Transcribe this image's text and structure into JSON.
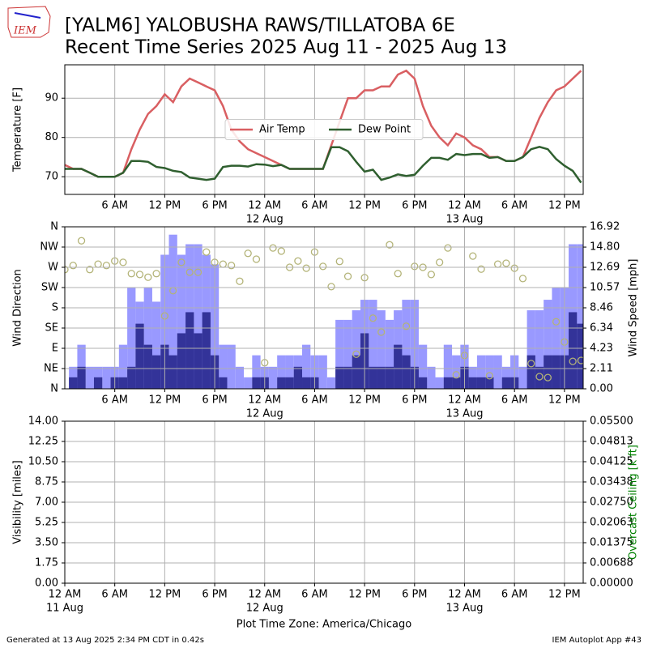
{
  "title": "[YALM6] YALOBUSHA RAWS/TILLATOBA 6E",
  "subtitle": "Recent Time Series 2025 Aug 11 - 2025 Aug 13",
  "logo_text": "IEM",
  "footer_left": "Generated at 13 Aug 2025 2:34 PM CDT in 0.42s",
  "footer_right": "IEM Autoplot App #43",
  "chart_data": [
    {
      "type": "line",
      "ylabel": "Temperature [F]",
      "grid": true,
      "legend": "center",
      "xlim": [
        0,
        62.25
      ],
      "ylim": [
        65.5,
        98.5
      ],
      "yticks": [
        70,
        80,
        90
      ],
      "xticks": [
        {
          "value": 6,
          "label": "6 AM"
        },
        {
          "value": 12,
          "label": "12 PM"
        },
        {
          "value": 18,
          "label": "6 PM"
        },
        {
          "value": 24,
          "label": "12 AM"
        },
        {
          "value": 30,
          "label": "6 AM"
        },
        {
          "value": 36,
          "label": "12 PM"
        },
        {
          "value": 42,
          "label": "6 PM"
        },
        {
          "value": 48,
          "label": "12 AM"
        },
        {
          "value": 54,
          "label": "6 AM"
        },
        {
          "value": 60,
          "label": "12 PM"
        }
      ],
      "xdates": [
        {
          "value": 24,
          "label": "12 Aug"
        },
        {
          "value": 48,
          "label": "13 Aug"
        }
      ],
      "x": [
        0,
        1,
        2,
        3,
        4,
        5,
        6,
        7,
        8,
        9,
        10,
        11,
        12,
        13,
        14,
        15,
        16,
        17,
        18,
        19,
        20,
        21,
        22,
        23,
        24,
        25,
        26,
        27,
        28,
        29,
        30,
        31,
        32,
        33,
        34,
        35,
        36,
        37,
        38,
        39,
        40,
        41,
        42,
        43,
        44,
        45,
        46,
        47,
        48,
        49,
        50,
        51,
        52,
        53,
        54,
        55,
        56,
        57,
        58,
        59,
        60,
        61,
        62
      ],
      "series": [
        {
          "name": "Air Temp",
          "color": "#d95f62",
          "values": [
            73,
            72,
            72,
            71,
            70,
            70,
            70,
            71,
            77,
            82,
            86,
            88,
            91,
            89,
            93,
            95,
            94,
            93,
            92,
            88,
            82,
            79,
            77,
            76,
            75,
            74,
            73,
            72,
            72,
            72,
            72,
            72,
            78,
            84,
            90,
            90,
            92,
            92,
            93,
            93,
            96,
            97,
            95,
            88,
            83,
            80,
            78,
            81,
            80,
            78,
            77,
            75,
            75,
            74,
            74,
            75,
            80,
            85,
            89,
            92,
            93,
            95,
            97
          ]
        },
        {
          "name": "Dew Point",
          "color": "#2f5f2f",
          "values": [
            72,
            72,
            72,
            71,
            70,
            70,
            70,
            71,
            74,
            74,
            73.8,
            72.5,
            72.2,
            71.5,
            71.2,
            69.8,
            69.5,
            69.2,
            69.5,
            72.5,
            72.8,
            72.8,
            72.6,
            73.2,
            73.1,
            72.7,
            73,
            72,
            72,
            72,
            72,
            72,
            77.5,
            77.5,
            76.5,
            73.8,
            71.3,
            71.8,
            69.2,
            69.8,
            70.6,
            70.2,
            70.5,
            72.8,
            74.8,
            74.8,
            74.3,
            75.8,
            75.5,
            75.8,
            75.8,
            74.8,
            75,
            74,
            74,
            75,
            77,
            77.6,
            77,
            74.5,
            72.8,
            71.5,
            68.5
          ]
        }
      ]
    },
    {
      "type": "bar",
      "ylabel": "Wind Direction",
      "y2label": "Wind Speed [mph]",
      "grid": true,
      "xlim": [
        0,
        62.25
      ],
      "ylim": [
        0,
        360
      ],
      "y2lim": [
        0,
        16.92
      ],
      "yticks": [
        {
          "value": 0,
          "label": "N"
        },
        {
          "value": 45,
          "label": "NE"
        },
        {
          "value": 90,
          "label": "E"
        },
        {
          "value": 135,
          "label": "SE"
        },
        {
          "value": 180,
          "label": "S"
        },
        {
          "value": 225,
          "label": "SW"
        },
        {
          "value": 270,
          "label": "W"
        },
        {
          "value": 315,
          "label": "NW"
        },
        {
          "value": 360,
          "label": "N"
        }
      ],
      "y2ticks": [
        {
          "value": 0,
          "label": "0.00"
        },
        2.11,
        4.23,
        6.34,
        8.46,
        10.57,
        12.69,
        {
          "value": 14.8,
          "label": "14.80"
        },
        16.92
      ],
      "xticks": [
        {
          "value": 6,
          "label": "6 AM"
        },
        {
          "value": 12,
          "label": "12 PM"
        },
        {
          "value": 18,
          "label": "6 PM"
        },
        {
          "value": 24,
          "label": "12 AM"
        },
        {
          "value": 30,
          "label": "6 AM"
        },
        {
          "value": 36,
          "label": "12 PM"
        },
        {
          "value": 42,
          "label": "6 PM"
        },
        {
          "value": 48,
          "label": "12 AM"
        },
        {
          "value": 54,
          "label": "6 AM"
        },
        {
          "value": 60,
          "label": "12 PM"
        }
      ],
      "xdates": [
        {
          "value": 24,
          "label": "12 Aug"
        },
        {
          "value": 48,
          "label": "13 Aug"
        }
      ],
      "series": [
        {
          "type": "bar",
          "axis": "y2",
          "color": "#9999ff",
          "x": [
            1,
            2,
            3,
            4,
            5,
            6,
            7,
            8,
            9,
            10,
            11,
            12,
            13,
            14,
            15,
            16,
            17,
            18,
            19,
            20,
            21,
            22,
            23,
            24,
            25,
            26,
            27,
            28,
            29,
            30,
            31,
            32,
            33,
            34,
            35,
            36,
            37,
            38,
            39,
            40,
            41,
            42,
            43,
            44,
            45,
            46,
            47,
            48,
            49,
            50,
            51,
            52,
            53,
            54,
            55,
            56,
            57,
            58,
            59,
            60,
            61,
            62
          ],
          "values": [
            2.3,
            4.6,
            2.3,
            2.3,
            2.3,
            2.3,
            4.6,
            10.6,
            9.1,
            10.6,
            9.1,
            14,
            16.1,
            14,
            15.1,
            15.1,
            14,
            13,
            4.6,
            4.6,
            2.3,
            1.2,
            3.5,
            2.3,
            2.3,
            3.5,
            3.5,
            3.5,
            4.6,
            3.5,
            3.5,
            1.2,
            7.2,
            7.2,
            8.2,
            9.3,
            9.3,
            8.2,
            7.2,
            8.2,
            9.3,
            9.3,
            4.6,
            2.3,
            1.2,
            4.6,
            3.5,
            4.6,
            2.3,
            3.5,
            3.5,
            3.5,
            2.3,
            3.5,
            2.3,
            8.2,
            8.2,
            9.3,
            10.6,
            10.6,
            15.1,
            15.1
          ]
        },
        {
          "type": "bar",
          "axis": "y2",
          "color": "#333399",
          "x": [
            1,
            2,
            3,
            4,
            5,
            6,
            7,
            8,
            9,
            10,
            11,
            12,
            13,
            14,
            15,
            16,
            17,
            18,
            19,
            20,
            21,
            22,
            23,
            24,
            25,
            26,
            27,
            28,
            29,
            30,
            31,
            32,
            33,
            34,
            35,
            36,
            37,
            38,
            39,
            40,
            41,
            42,
            43,
            44,
            45,
            46,
            47,
            48,
            49,
            50,
            51,
            52,
            53,
            54,
            55,
            56,
            57,
            58,
            59,
            60,
            61,
            62
          ],
          "values": [
            1.2,
            2.3,
            0,
            1.2,
            0,
            1.2,
            1.2,
            2.3,
            6.8,
            4.6,
            3.5,
            4.6,
            3.5,
            5.8,
            8,
            5.8,
            8,
            3.5,
            1.2,
            0,
            0,
            0,
            1.2,
            1.2,
            0,
            1.2,
            1.2,
            2.3,
            1.2,
            1.2,
            0,
            0,
            2.3,
            2.3,
            3.5,
            5.8,
            2.3,
            2.3,
            2.3,
            4.6,
            3.5,
            2.3,
            1.2,
            0,
            0,
            1.2,
            1.2,
            2.3,
            1.2,
            1.2,
            1.2,
            0,
            1.2,
            1.2,
            0,
            3.5,
            2.3,
            3.5,
            3.5,
            3.5,
            8,
            6.8
          ]
        },
        {
          "type": "scatter",
          "color": "#b3b377",
          "x": [
            0,
            1,
            2,
            3,
            4,
            5,
            6,
            7,
            8,
            9,
            10,
            11,
            12,
            13,
            14,
            15,
            16,
            17,
            18,
            19,
            20,
            21,
            22,
            23,
            24,
            25,
            26,
            27,
            28,
            29,
            30,
            31,
            32,
            33,
            34,
            35,
            36,
            37,
            38,
            39,
            40,
            41,
            42,
            43,
            44,
            45,
            46,
            47,
            48,
            49,
            50,
            51,
            52,
            53,
            54,
            55,
            56,
            57,
            58,
            59,
            60,
            61,
            62
          ],
          "values": [
            265,
            274,
            329,
            265,
            277,
            274,
            284,
            281,
            256,
            254,
            248,
            256,
            162,
            218,
            281,
            259,
            259,
            304,
            281,
            277,
            274,
            239,
            301,
            288,
            58,
            313,
            306,
            270,
            284,
            268,
            304,
            272,
            227,
            283,
            250,
            77,
            247,
            157,
            126,
            320,
            256,
            139,
            272,
            270,
            254,
            281,
            313,
            31,
            74,
            295,
            266,
            29,
            277,
            279,
            268,
            245,
            56,
            27,
            25,
            149,
            104,
            61,
            63
          ]
        }
      ]
    },
    {
      "type": "line",
      "ylabel": "Visibility [miles]",
      "y2label": "Overcast Ceiling [k ft]",
      "y2color": "#008000",
      "xlabel": "Plot Time Zone: America/Chicago",
      "grid": true,
      "xlim": [
        0,
        62.25
      ],
      "ylim": [
        0,
        14
      ],
      "y2lim": [
        0,
        0.055
      ],
      "yticks": [
        {
          "value": 0,
          "label": "0.00"
        },
        1.75,
        {
          "value": 3.5,
          "label": "3.50"
        },
        5.25,
        {
          "value": 7,
          "label": "7.00"
        },
        8.75,
        {
          "value": 10.5,
          "label": "10.50"
        },
        12.25,
        {
          "value": 14,
          "label": "14.00"
        }
      ],
      "y2ticks": [
        {
          "value": 0,
          "label": "0.00000"
        },
        0.00688,
        0.01375,
        0.02063,
        {
          "value": 0.0275,
          "label": "0.02750"
        },
        0.03438,
        0.04125,
        0.04813,
        {
          "value": 0.055,
          "label": "0.05500"
        }
      ],
      "xticks": [
        {
          "value": 0,
          "label": "12 AM"
        },
        {
          "value": 6,
          "label": "6 AM"
        },
        {
          "value": 12,
          "label": "12 PM"
        },
        {
          "value": 18,
          "label": "6 PM"
        },
        {
          "value": 24,
          "label": "12 AM"
        },
        {
          "value": 30,
          "label": "6 AM"
        },
        {
          "value": 36,
          "label": "12 PM"
        },
        {
          "value": 42,
          "label": "6 PM"
        },
        {
          "value": 48,
          "label": "12 AM"
        },
        {
          "value": 54,
          "label": "6 AM"
        },
        {
          "value": 60,
          "label": "12 PM"
        }
      ],
      "xdates": [
        {
          "value": 0,
          "label": "11 Aug"
        },
        {
          "value": 24,
          "label": "12 Aug"
        },
        {
          "value": 48,
          "label": "13 Aug"
        }
      ],
      "series": []
    }
  ]
}
